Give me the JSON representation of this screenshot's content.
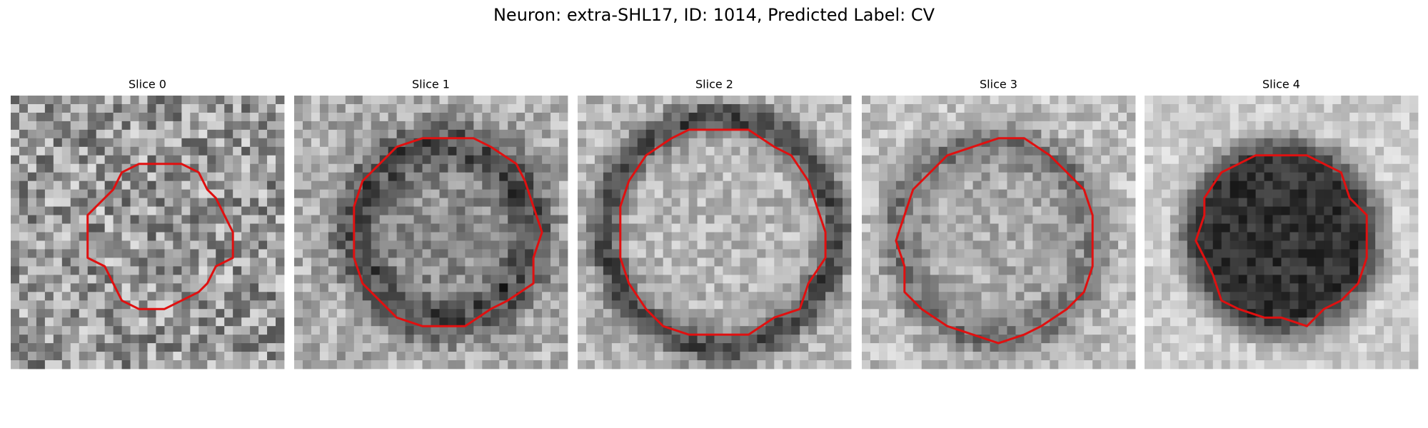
{
  "header": {
    "title": "Neuron: extra-SHL17, ID: 1014, Predicted Label: CV"
  },
  "panels": [
    {
      "title": "Slice 0"
    },
    {
      "title": "Slice 1"
    },
    {
      "title": "Slice 2"
    },
    {
      "title": "Slice 3"
    },
    {
      "title": "Slice 4"
    }
  ]
}
